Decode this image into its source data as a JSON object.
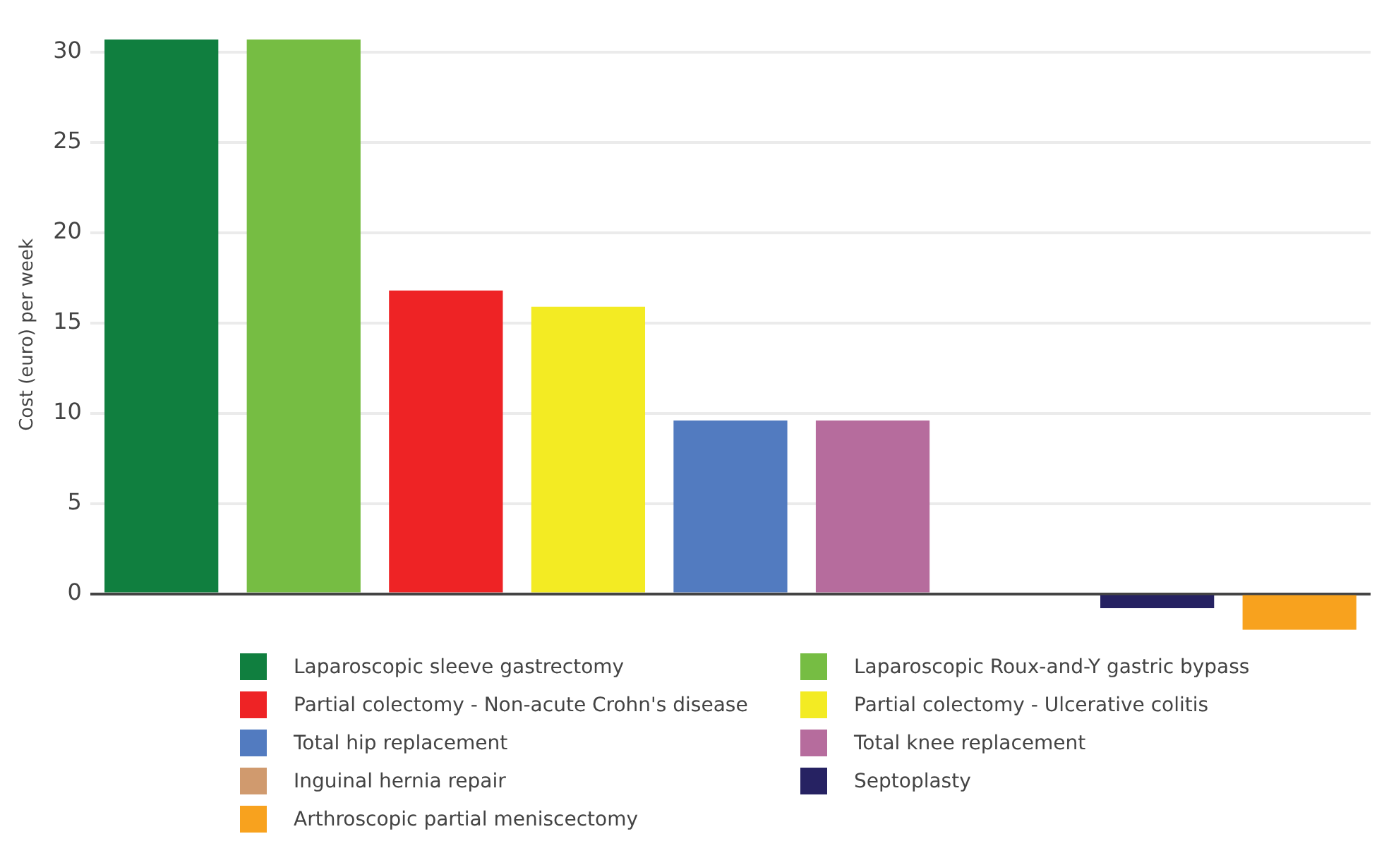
{
  "chart_data": {
    "type": "bar",
    "ylabel": "Cost (euro) per week",
    "categories": [
      null,
      null,
      null,
      null,
      null,
      null,
      null,
      null,
      null
    ],
    "series": [
      {
        "name": "Laparoscopic sleeve gastrectomy",
        "color": "#107f3f",
        "values": [
          30.7,
          null,
          null,
          null,
          null,
          null,
          null,
          null,
          null
        ]
      },
      {
        "name": "Laparoscopic Roux-and-Y gastric bypass",
        "color": "#76bd43",
        "values": [
          null,
          30.7,
          null,
          null,
          null,
          null,
          null,
          null,
          null
        ]
      },
      {
        "name": "Partial colectomy - Non-acute Crohn's disease",
        "color": "#ee2325",
        "values": [
          null,
          null,
          16.8,
          null,
          null,
          null,
          null,
          null,
          null
        ]
      },
      {
        "name": "Partial colectomy - Ulcerative colitis",
        "color": "#f3eb23",
        "values": [
          null,
          null,
          null,
          15.9,
          null,
          null,
          null,
          null,
          null
        ]
      },
      {
        "name": "Total hip replacement",
        "color": "#527bc0",
        "values": [
          null,
          null,
          null,
          null,
          9.6,
          null,
          null,
          null,
          null
        ]
      },
      {
        "name": "Total knee replacement",
        "color": "#b66c9d",
        "values": [
          null,
          null,
          null,
          null,
          null,
          9.6,
          null,
          null,
          null
        ]
      },
      {
        "name": "Inguinal hernia repair",
        "color": "#d09a6e",
        "values": [
          null,
          null,
          null,
          null,
          null,
          null,
          0,
          null,
          null
        ]
      },
      {
        "name": "Septoplasty",
        "color": "#262262",
        "values": [
          null,
          null,
          null,
          null,
          null,
          null,
          null,
          -0.8,
          null
        ]
      },
      {
        "name": "Arthroscopic partial meniscectomy",
        "color": "#f8a21e",
        "values": [
          null,
          null,
          null,
          null,
          null,
          null,
          null,
          null,
          -2.0
        ]
      }
    ],
    "ylim": [
      -2.0,
      30.7
    ],
    "yticks": [
      0,
      5,
      10,
      15,
      20,
      25,
      30
    ],
    "grid": "y",
    "legend": "bottom"
  }
}
